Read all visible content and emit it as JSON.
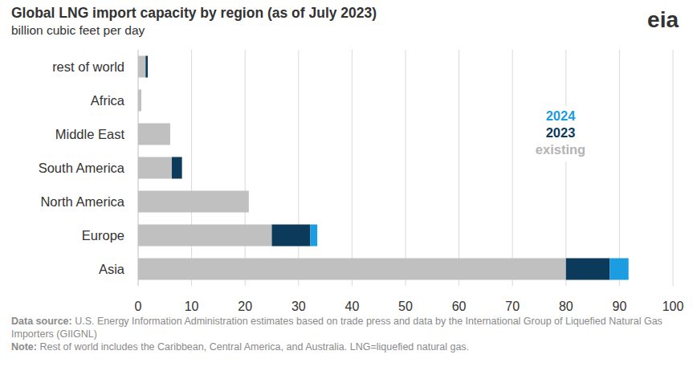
{
  "chart_data": {
    "type": "bar",
    "orientation": "horizontal",
    "stacked": true,
    "title": "Global LNG import capacity by region (as of July 2023)",
    "subtitle": "billion cubic feet per day",
    "logo": "eia",
    "categories": [
      "rest of world",
      "Africa",
      "Middle East",
      "South America",
      "North America",
      "Europe",
      "Asia"
    ],
    "series": [
      {
        "name": "existing",
        "color": "#c0c0c0",
        "values": [
          1.4,
          0.6,
          6,
          6.3,
          20.7,
          25,
          80
        ]
      },
      {
        "name": "2023",
        "color": "#0b3a5b",
        "values": [
          0.4,
          0,
          0,
          1.9,
          0,
          7.2,
          8.2
        ]
      },
      {
        "name": "2024",
        "color": "#1c9de2",
        "values": [
          0,
          0,
          0,
          0,
          0,
          1.3,
          3.5
        ]
      }
    ],
    "xlim": [
      0,
      100
    ],
    "xticks": [
      0,
      10,
      20,
      30,
      40,
      50,
      60,
      70,
      80,
      90,
      100
    ],
    "grid": true,
    "legend": "right",
    "source_label": "Data source:",
    "source": "U.S. Energy Information Administration estimates based on trade press and data by the International Group of Liquefied Natural Gas Importers (GIIGNL)",
    "note_label": "Note:",
    "note": "Rest of world includes the Caribbean, Central America, and Australia. LNG=liquefied natural gas."
  }
}
